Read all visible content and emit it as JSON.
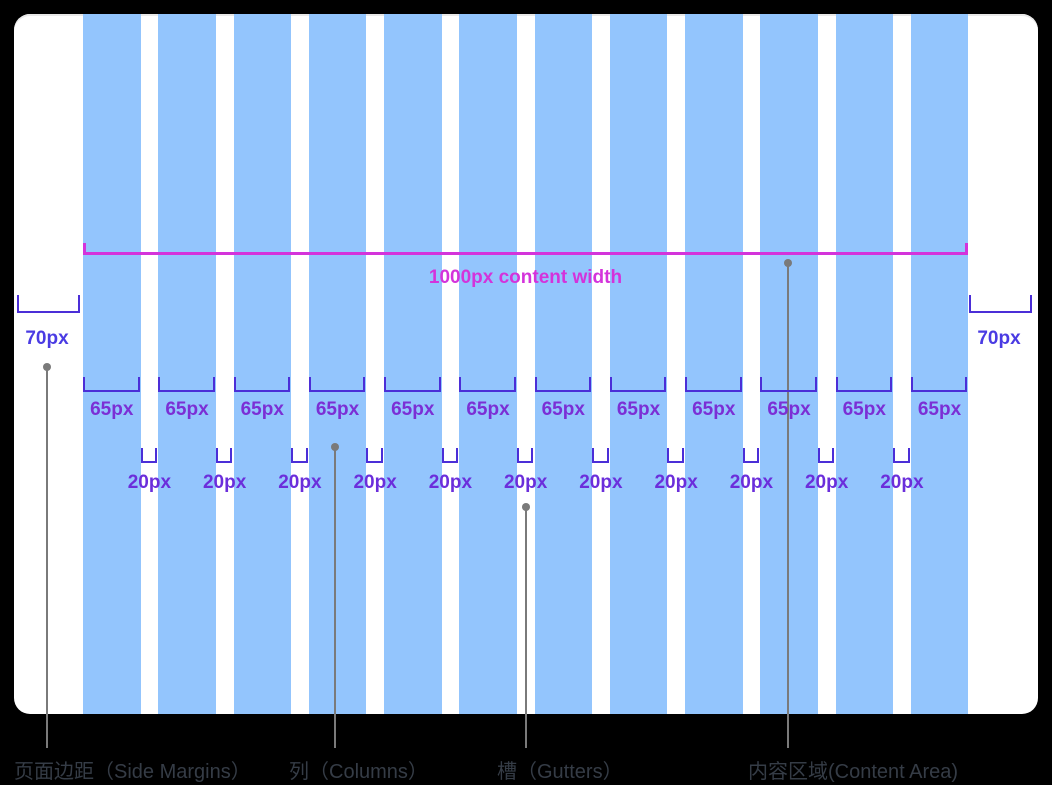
{
  "diagram": {
    "content_width_label": "1000px content width",
    "columns": {
      "count": 12,
      "width_label": "65px"
    },
    "gutters": {
      "count": 11,
      "width_label": "20px"
    },
    "margins": {
      "left_label": "70px",
      "right_label": "70px"
    },
    "colors": {
      "page_bg": "#000000",
      "card_bg": "#FFFFFF",
      "column_fill": "#93C5FD",
      "content_magenta": "#D433DB",
      "bracket_indigo": "#4B2ED7",
      "margin_text": "#4A3BE3",
      "column_text": "#7B2FD5",
      "gutter_text": "#6B2EDB",
      "leader_gray": "#7A7A7A",
      "legend_text": "#353C46"
    },
    "legend": [
      {
        "id": "side-margins",
        "label": "页面边距（Side Margins）"
      },
      {
        "id": "columns",
        "label": "列（Columns）"
      },
      {
        "id": "gutters",
        "label": "槽（Gutters）"
      },
      {
        "id": "content-area",
        "label": "内容区域(Content Area)"
      }
    ]
  }
}
